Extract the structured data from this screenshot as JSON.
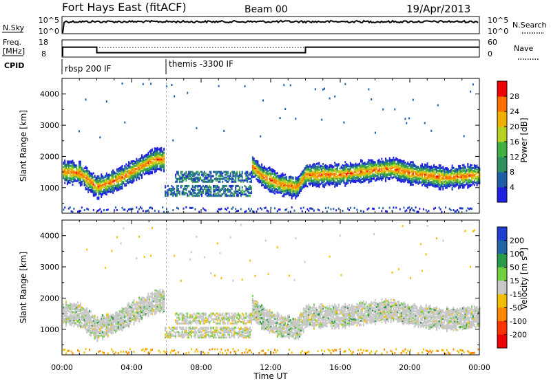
{
  "header": {
    "station": "Fort Hays East (fitACF)",
    "beam": "Beam 00",
    "date": "19/Apr/2013"
  },
  "aux_panels": {
    "nsky_label": "N.Sky",
    "nsky_ticks": [
      "10^5",
      "10^0"
    ],
    "nsearch_label": "N.Search",
    "nsearch_ticks": [
      "10^5",
      "10^0"
    ],
    "freq_label_1": "Freq.",
    "freq_label_2": "[MHz]",
    "freq_ticks": [
      "18",
      "8"
    ],
    "nave_label": "Nave",
    "nave_ticks": [
      "60",
      "0"
    ],
    "cpid_label": "CPID",
    "cpid_segments": [
      {
        "label": "rbsp 200 IF",
        "start_h": 0,
        "end_h": 6
      },
      {
        "label": "themis -3300 IF",
        "start_h": 6,
        "end_h": 24
      }
    ],
    "freq_profile_mhz": [
      [
        0,
        15.3
      ],
      [
        2,
        15.3
      ],
      [
        2,
        10.6
      ],
      [
        14,
        10.6
      ],
      [
        14,
        15.3
      ],
      [
        24,
        15.3
      ]
    ]
  },
  "chart_data": [
    {
      "type": "heatmap",
      "panel": "power",
      "ylabel": "Slant Range [km]",
      "xlabel": "",
      "yticks": [
        1000,
        2000,
        3000,
        4000
      ],
      "ylim": [
        180,
        4500
      ],
      "xlim": [
        0,
        24
      ],
      "colorbar_label": "Power [dB]",
      "colorbar_ticks": [
        "4",
        "8",
        "12",
        "16",
        "20",
        "24",
        "28"
      ],
      "colorbar_colors": [
        "#2020e0",
        "#1f5fa8",
        "#2f8f5f",
        "#40b040",
        "#b8d020",
        "#f0b000",
        "#ff7000",
        "#ee0000"
      ],
      "echo_bands_km": [
        [
          0,
          1550
        ],
        [
          1,
          1500
        ],
        [
          2,
          1050
        ],
        [
          3,
          1250
        ],
        [
          4,
          1550
        ],
        [
          5,
          1850
        ],
        [
          5.5,
          1950
        ],
        [
          10.8,
          1800
        ],
        [
          11.5,
          1400
        ],
        [
          12.5,
          1150
        ],
        [
          13.5,
          1050
        ],
        [
          14,
          1450
        ],
        [
          16,
          1450
        ],
        [
          18,
          1600
        ],
        [
          19,
          1650
        ],
        [
          20,
          1500
        ],
        [
          22,
          1350
        ],
        [
          24,
          1450
        ]
      ]
    },
    {
      "type": "heatmap",
      "panel": "velocity",
      "ylabel": "Slant Range [km]",
      "xlabel": "Time UT",
      "yticks": [
        1000,
        2000,
        3000,
        4000
      ],
      "ylim": [
        180,
        4500
      ],
      "xlim": [
        0,
        24
      ],
      "xticks": [
        "00:00",
        "04:00",
        "08:00",
        "12:00",
        "16:00",
        "20:00",
        "00:00"
      ],
      "colorbar_label": "Velocity [m s",
      "colorbar_ticks": [
        "200",
        "100",
        "50",
        "15",
        "-15",
        "-50",
        "-100",
        "-200"
      ],
      "colorbar_colors": [
        "#1f3fd0",
        "#2266aa",
        "#2a9a4a",
        "#6fd040",
        "#c8c8c8",
        "#f0c000",
        "#ff8800",
        "#ff3300",
        "#ee0000"
      ]
    }
  ]
}
